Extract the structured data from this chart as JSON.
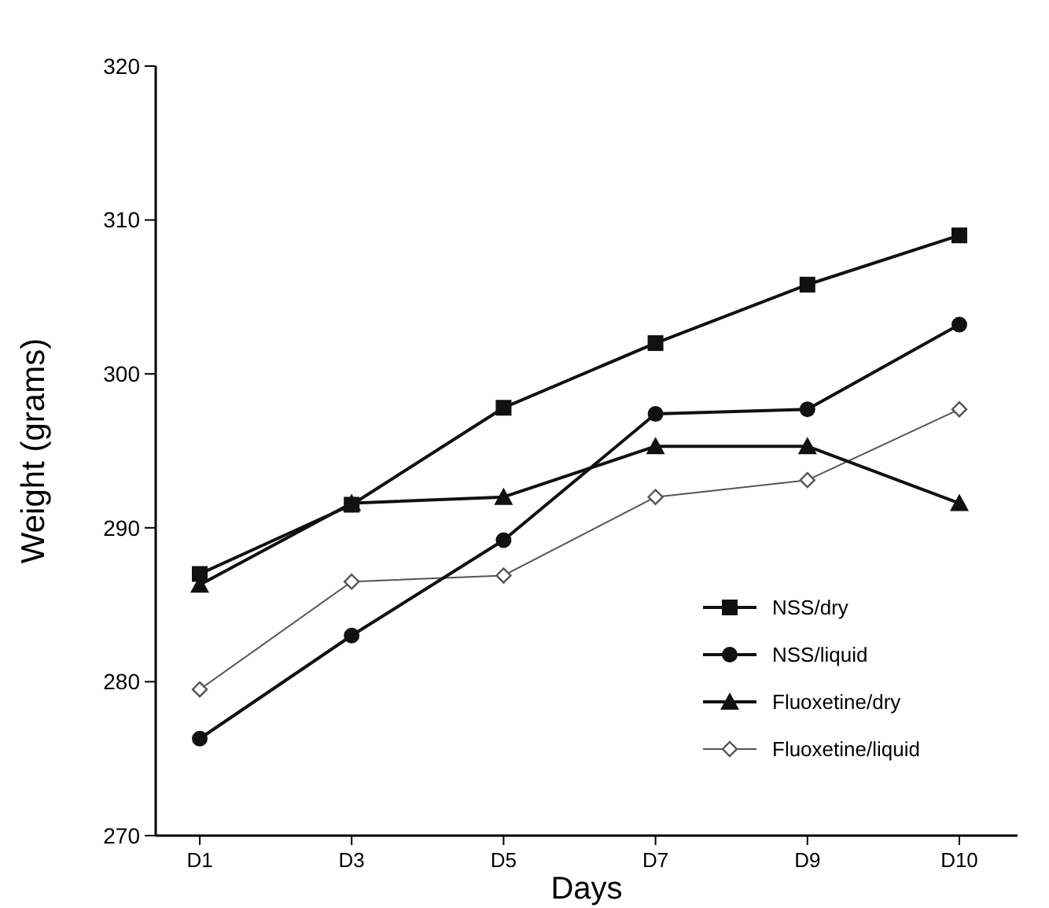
{
  "chart_data": {
    "type": "line",
    "xlabel": "Days",
    "ylabel": "Weight (grams)",
    "categories": [
      "D1",
      "D3",
      "D5",
      "D7",
      "D9",
      "D10"
    ],
    "ylim": [
      270,
      320
    ],
    "yticks": [
      270,
      280,
      290,
      300,
      310,
      320
    ],
    "legend": "bottom right",
    "grid": false,
    "series": [
      {
        "name": "NSS/dry",
        "color": "#111111",
        "marker": "square",
        "values": [
          287.0,
          291.5,
          297.8,
          302.0,
          305.8,
          309.0
        ]
      },
      {
        "name": "NSS/liquid",
        "color": "#111111",
        "marker": "circle",
        "values": [
          276.3,
          283.0,
          289.2,
          297.4,
          297.7,
          303.2
        ]
      },
      {
        "name": "Fluoxetine/dry",
        "color": "#111111",
        "marker": "triangle",
        "values": [
          286.3,
          291.6,
          292.0,
          295.3,
          295.3,
          291.6
        ]
      },
      {
        "name": "Fluoxetine/liquid",
        "color": "#555555",
        "marker": "diamond",
        "values": [
          279.5,
          286.5,
          286.9,
          292.0,
          293.1,
          297.7
        ]
      }
    ]
  }
}
